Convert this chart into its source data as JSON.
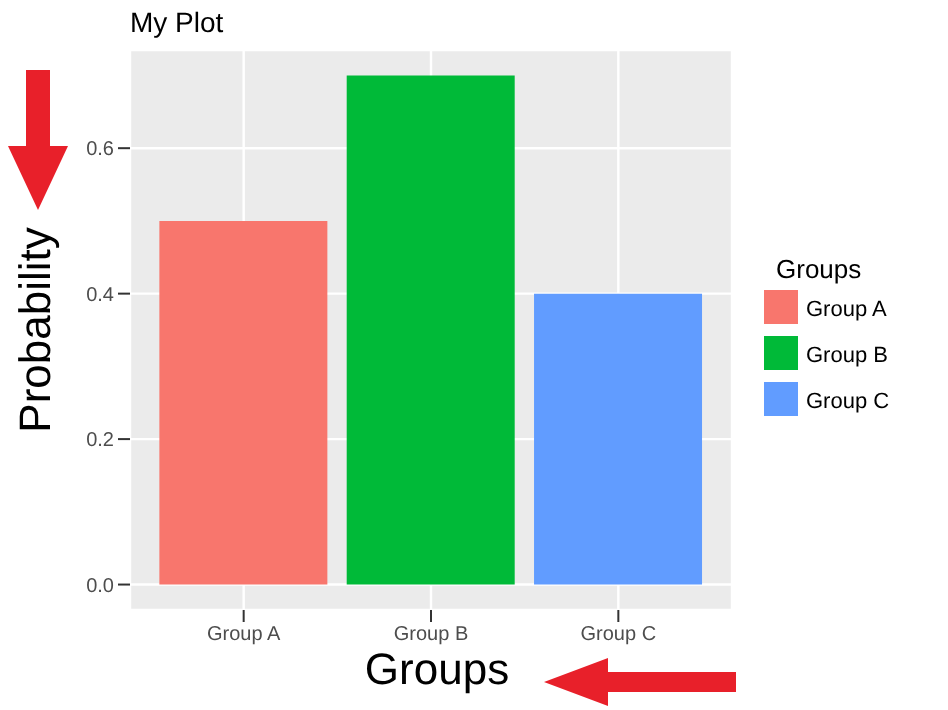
{
  "chart_data": {
    "type": "bar",
    "title": "My Plot",
    "xlabel": "Groups",
    "ylabel": "Probability",
    "legend_title": "Groups",
    "categories": [
      "Group A",
      "Group B",
      "Group C"
    ],
    "series": [
      {
        "name": "Group A",
        "color": "#f8766d",
        "values": [
          0.5,
          null,
          null
        ]
      },
      {
        "name": "Group B",
        "color": "#00ba38",
        "values": [
          null,
          0.7,
          null
        ]
      },
      {
        "name": "Group C",
        "color": "#619cff",
        "values": [
          null,
          null,
          0.4
        ]
      }
    ],
    "stacked": true,
    "ylim": [
      -0.035,
      0.735
    ],
    "yticks": [
      {
        "value": 0,
        "label": "0.0"
      },
      {
        "value": 0.2,
        "label": "0.2"
      },
      {
        "value": 0.4,
        "label": "0.4"
      },
      {
        "value": 0.6,
        "label": "0.6"
      }
    ],
    "grid": true,
    "legend": "right"
  }
}
